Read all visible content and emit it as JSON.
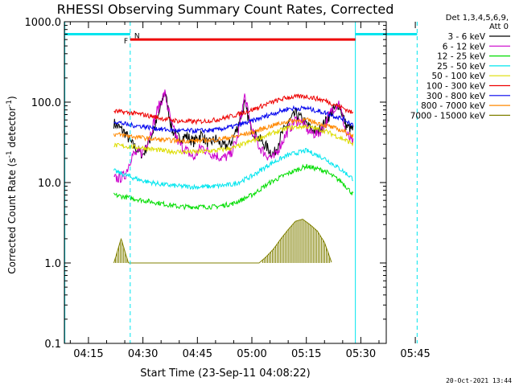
{
  "chart_data": {
    "type": "line",
    "title": "RHESSI Observing Summary Count Rates, Corrected",
    "xlabel": "Start Time (23-Sep-11 04:08:22)",
    "ylabel": "Corrected Count Rate (s",
    "ylabel_exp": "-1",
    "ylabel_mid": " detector",
    "ylabel_end": ")",
    "yscale": "log",
    "xlim_min": [
      8.37,
      97.0
    ],
    "ylim": [
      0.1,
      1000
    ],
    "x_ticks": [
      {
        "t": 15,
        "label": "04:15"
      },
      {
        "t": 30,
        "label": "04:30"
      },
      {
        "t": 45,
        "label": "04:45"
      },
      {
        "t": 60,
        "label": "05:00"
      },
      {
        "t": 75,
        "label": "05:15"
      },
      {
        "t": 90,
        "label": "05:30"
      },
      {
        "t": 105,
        "label": "05:45"
      }
    ],
    "y_ticks": [
      {
        "v": 0.1,
        "label": "0.1"
      },
      {
        "v": 1,
        "label": "1.0"
      },
      {
        "v": 10,
        "label": "10.0"
      },
      {
        "v": 100,
        "label": "100.0"
      },
      {
        "v": 1000,
        "label": "1000.0"
      }
    ],
    "legend_header": [
      "Det 1,3,4,5,6,9,",
      "Att 0"
    ],
    "series": [
      {
        "name": "3 - 6 keV",
        "color": "#000000",
        "x": [
          22,
          25,
          27,
          30,
          32,
          34,
          36,
          38,
          40,
          42,
          44,
          46,
          48,
          50,
          52,
          54,
          56,
          58,
          60,
          62,
          64,
          66,
          68,
          70,
          72,
          74,
          76,
          78,
          80,
          82,
          84,
          86,
          88
        ],
        "values": [
          55,
          42,
          30,
          22,
          35,
          60,
          140,
          45,
          35,
          38,
          32,
          40,
          30,
          35,
          28,
          30,
          48,
          95,
          45,
          35,
          28,
          22,
          38,
          55,
          72,
          60,
          48,
          42,
          55,
          75,
          95,
          50,
          45
        ]
      },
      {
        "name": "6 - 12 keV",
        "color": "#cc00cc",
        "x": [
          22,
          25,
          27,
          30,
          32,
          34,
          36,
          38,
          40,
          42,
          44,
          46,
          48,
          50,
          52,
          54,
          56,
          58,
          60,
          62,
          64,
          66,
          68,
          70,
          72,
          74,
          76,
          78,
          80,
          82,
          84,
          86,
          88
        ],
        "values": [
          11,
          12,
          22,
          24,
          40,
          80,
          130,
          50,
          30,
          25,
          20,
          28,
          24,
          22,
          20,
          22,
          35,
          120,
          45,
          28,
          22,
          20,
          30,
          45,
          60,
          55,
          42,
          40,
          50,
          80,
          100,
          40,
          30
        ]
      },
      {
        "name": "12 - 25 keV",
        "color": "#00dd00",
        "x": [
          22,
          26,
          30,
          35,
          40,
          45,
          50,
          55,
          60,
          65,
          70,
          75,
          80,
          85,
          88
        ],
        "values": [
          7,
          6.5,
          6.0,
          5.5,
          5.0,
          5.0,
          5.0,
          5.5,
          7,
          10,
          13,
          16,
          14,
          10,
          7
        ]
      },
      {
        "name": "25 - 50 keV",
        "color": "#00e5ee",
        "x": [
          22,
          26,
          30,
          35,
          40,
          45,
          50,
          55,
          60,
          65,
          70,
          75,
          80,
          85,
          88
        ],
        "values": [
          14,
          12,
          10.5,
          9.5,
          9,
          8.8,
          9,
          9.5,
          12,
          17,
          22,
          25,
          20,
          14,
          11
        ]
      },
      {
        "name": "50 - 100 keV",
        "color": "#dddd00",
        "x": [
          22,
          26,
          30,
          35,
          40,
          45,
          50,
          55,
          60,
          65,
          70,
          75,
          80,
          85,
          88
        ],
        "values": [
          29,
          28,
          27,
          25,
          24,
          24,
          25,
          27,
          33,
          40,
          48,
          50,
          44,
          35,
          30
        ]
      },
      {
        "name": "100 - 300 keV",
        "color": "#ee0000",
        "x": [
          22,
          26,
          30,
          35,
          40,
          45,
          50,
          55,
          60,
          65,
          70,
          75,
          80,
          85,
          88
        ],
        "values": [
          77,
          74,
          70,
          63,
          58,
          57,
          60,
          68,
          80,
          98,
          115,
          118,
          105,
          85,
          72
        ]
      },
      {
        "name": "300 - 800 keV",
        "color": "#0000ee",
        "x": [
          22,
          26,
          30,
          35,
          40,
          45,
          50,
          55,
          60,
          65,
          70,
          75,
          80,
          85,
          88
        ],
        "values": [
          58,
          52,
          50,
          46,
          44,
          44,
          45,
          50,
          58,
          70,
          83,
          84,
          74,
          62,
          52
        ]
      },
      {
        "name": "800 - 7000 keV",
        "color": "#ff8800",
        "x": [
          22,
          26,
          30,
          35,
          40,
          45,
          50,
          55,
          60,
          65,
          70,
          75,
          80,
          85,
          88
        ],
        "values": [
          40,
          38,
          36,
          34,
          33,
          33,
          34,
          37,
          42,
          50,
          58,
          60,
          52,
          44,
          38
        ]
      },
      {
        "name": "7000 - 15000 keV",
        "color": "#808000",
        "x": [
          22,
          24,
          26,
          62,
          64,
          66,
          68,
          70,
          72,
          74,
          76,
          78,
          80,
          82
        ],
        "values": [
          1.0,
          2.0,
          1.0,
          1.0,
          1.2,
          1.5,
          2.0,
          2.6,
          3.3,
          3.5,
          3.0,
          2.5,
          1.8,
          1.0
        ]
      }
    ],
    "flags": [
      {
        "label": "F",
        "color": "#ee0000",
        "t_start": 26.5,
        "t_end": 88.5,
        "level": 600
      },
      {
        "label": "N",
        "color": "#00e5ee",
        "segments": [
          [
            8.5,
            26.5
          ],
          [
            88.5,
            105.5
          ]
        ],
        "level": 700
      }
    ],
    "night_lines": [
      {
        "t": 26.5
      },
      {
        "t": 105.5
      }
    ],
    "day_lines": [
      {
        "t": 8.5
      },
      {
        "t": 88.5
      }
    ],
    "date_stamp": "20-Oct-2021 13:44"
  }
}
